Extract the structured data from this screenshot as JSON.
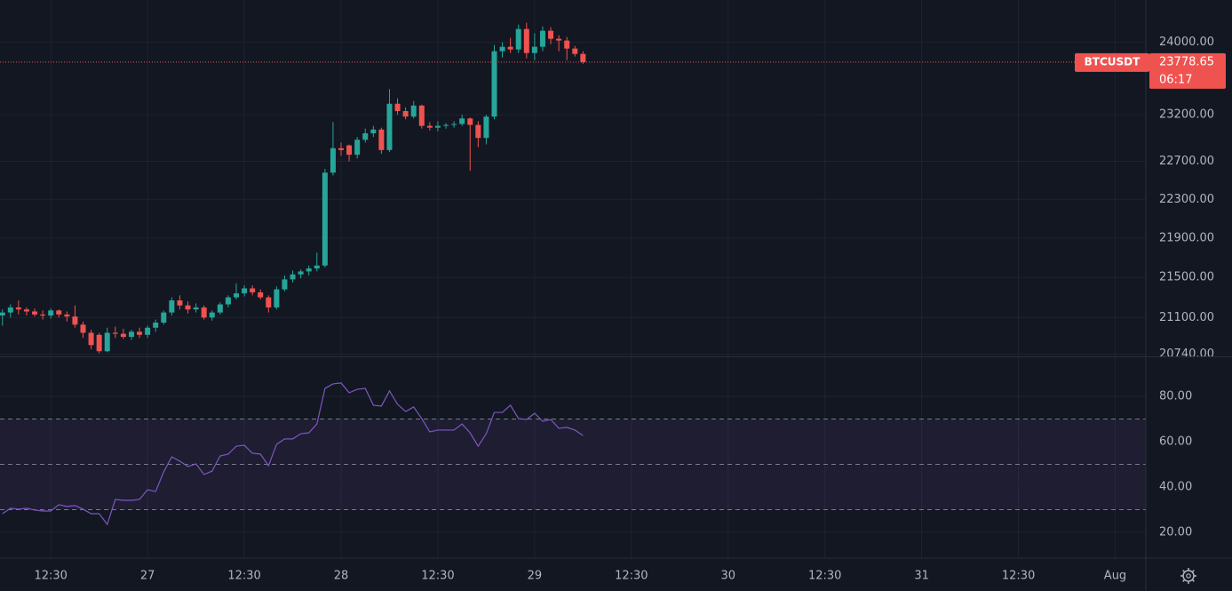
{
  "chart_data": {
    "type": "candlestick",
    "symbol": "BTCUSDT",
    "countdown": "06:17",
    "log_scale": true,
    "grid": true,
    "up_color": "#26a69a",
    "down_color": "#ef5350",
    "candles": {
      "open": [
        21120,
        21150,
        21200,
        21180,
        21160,
        21130,
        21120,
        21170,
        21130,
        21110,
        21030,
        20950,
        20930,
        20770,
        20950,
        20940,
        20910,
        20960,
        20930,
        21000,
        21050,
        21150,
        21270,
        21220,
        21180,
        21200,
        21100,
        21150,
        21230,
        21300,
        21340,
        21390,
        21350,
        21300,
        21200,
        21380,
        21480,
        21530,
        21560,
        21590,
        21620,
        22580,
        22840,
        22870,
        22770,
        22930,
        23000,
        23040,
        22820,
        23320,
        23240,
        23180,
        23300,
        23080,
        23060,
        23080,
        23090,
        23100,
        23160,
        23090,
        22950,
        23180,
        23900,
        23950,
        23920,
        24150,
        23880,
        23950,
        24130,
        24040,
        24020,
        23930,
        23870
      ],
      "high": [
        21180,
        21230,
        21270,
        21200,
        21190,
        21170,
        21190,
        21180,
        21160,
        21220,
        21060,
        20980,
        20950,
        21000,
        21010,
        20990,
        20980,
        21000,
        21020,
        21080,
        21170,
        21300,
        21320,
        21260,
        21240,
        21220,
        21170,
        21250,
        21320,
        21440,
        21420,
        21420,
        21380,
        21320,
        21410,
        21520,
        21570,
        21580,
        21620,
        21750,
        22620,
        23120,
        22900,
        22880,
        22960,
        23050,
        23080,
        23060,
        23480,
        23380,
        23280,
        23350,
        23310,
        23120,
        23130,
        23110,
        23130,
        23200,
        23170,
        23130,
        23200,
        23970,
        24000,
        24050,
        24200,
        24220,
        24100,
        24180,
        24170,
        24080,
        24060,
        23960,
        23900
      ],
      "low": [
        21020,
        21100,
        21130,
        21120,
        21110,
        21080,
        21090,
        21100,
        21060,
        21000,
        20900,
        20790,
        20750,
        20760,
        20900,
        20890,
        20880,
        20900,
        20900,
        20960,
        21030,
        21120,
        21180,
        21140,
        21150,
        21080,
        21070,
        21130,
        21200,
        21280,
        21310,
        21320,
        21280,
        21150,
        21180,
        21360,
        21450,
        21490,
        21520,
        21560,
        21600,
        22550,
        22760,
        22700,
        22730,
        22900,
        22960,
        22780,
        22800,
        23200,
        23150,
        23160,
        23050,
        23030,
        23020,
        23050,
        23060,
        23080,
        22600,
        22850,
        22880,
        23150,
        23830,
        23880,
        23880,
        23820,
        23800,
        23900,
        23980,
        23900,
        23800,
        23840,
        23760
      ],
      "close": [
        21150,
        21200,
        21180,
        21160,
        21130,
        21120,
        21170,
        21130,
        21110,
        21030,
        20950,
        20830,
        20770,
        20950,
        20940,
        20910,
        20960,
        20930,
        21000,
        21050,
        21150,
        21270,
        21220,
        21180,
        21200,
        21100,
        21150,
        21230,
        21300,
        21340,
        21390,
        21350,
        21300,
        21200,
        21380,
        21480,
        21530,
        21560,
        21590,
        21620,
        22580,
        22840,
        22820,
        22770,
        22930,
        23000,
        23040,
        22820,
        23320,
        23240,
        23180,
        23300,
        23080,
        23060,
        23080,
        23090,
        23100,
        23160,
        23090,
        22950,
        23180,
        23900,
        23950,
        23920,
        24150,
        23880,
        23950,
        24130,
        24040,
        24020,
        23930,
        23870,
        23778.65
      ]
    },
    "ylim": [
      20720,
      24480
    ],
    "yticks": [
      {
        "value": 24000,
        "label": "24000.00"
      },
      {
        "value": 23200,
        "label": "23200.00"
      },
      {
        "value": 22700,
        "label": "22700.00"
      },
      {
        "value": 22300,
        "label": "22300.00"
      },
      {
        "value": 21900,
        "label": "21900.00"
      },
      {
        "value": 21500,
        "label": "21500.00"
      },
      {
        "value": 21100,
        "label": "21100.00"
      },
      {
        "value": 20740,
        "label": "20740.00"
      }
    ],
    "xlim": [
      -0.3,
      141.8
    ],
    "xticks": [
      {
        "value": 6,
        "label": "12:30"
      },
      {
        "value": 18,
        "label": "27"
      },
      {
        "value": 30,
        "label": "12:30"
      },
      {
        "value": 42,
        "label": "28"
      },
      {
        "value": 54,
        "label": "12:30"
      },
      {
        "value": 66,
        "label": "29"
      },
      {
        "value": 78,
        "label": "12:30"
      },
      {
        "value": 90,
        "label": "30"
      },
      {
        "value": 102,
        "label": "12:30"
      },
      {
        "value": 114,
        "label": "31"
      },
      {
        "value": 126,
        "label": "12:30"
      },
      {
        "value": 138,
        "label": "Aug"
      }
    ],
    "rsi": {
      "type": "line",
      "color": "#7e57c2",
      "band_color": "#7e57c2",
      "levels": [
        70,
        50,
        30
      ],
      "values": [
        28.2,
        30.6,
        30.2,
        30.6,
        29.8,
        29.4,
        29.4,
        32.2,
        31.4,
        31.8,
        30.2,
        28.2,
        28.2,
        23.5,
        34.5,
        34.1,
        34.1,
        34.5,
        38.8,
        38.0,
        46.7,
        53.3,
        51.4,
        49.0,
        50.2,
        45.5,
        47.0,
        53.7,
        54.5,
        58.0,
        58.4,
        54.9,
        54.5,
        49.4,
        58.8,
        61.2,
        61.2,
        63.5,
        63.9,
        67.8,
        83.5,
        85.5,
        85.9,
        81.6,
        83.1,
        83.5,
        76.1,
        75.7,
        82.4,
        76.5,
        73.3,
        75.3,
        70.2,
        64.3,
        65.1,
        65.1,
        65.1,
        67.8,
        63.9,
        58.0,
        63.5,
        72.9,
        72.9,
        76.1,
        70.2,
        69.8,
        72.5,
        69.0,
        69.8,
        65.9,
        66.3,
        65.1,
        62.7
      ],
      "ylim": [
        8.6,
        97.25
      ],
      "yticks": [
        {
          "value": 80,
          "label": "80.00"
        },
        {
          "value": 60,
          "label": "60.00"
        },
        {
          "value": 40,
          "label": "40.00"
        },
        {
          "value": 20,
          "label": "20.00"
        }
      ]
    }
  }
}
